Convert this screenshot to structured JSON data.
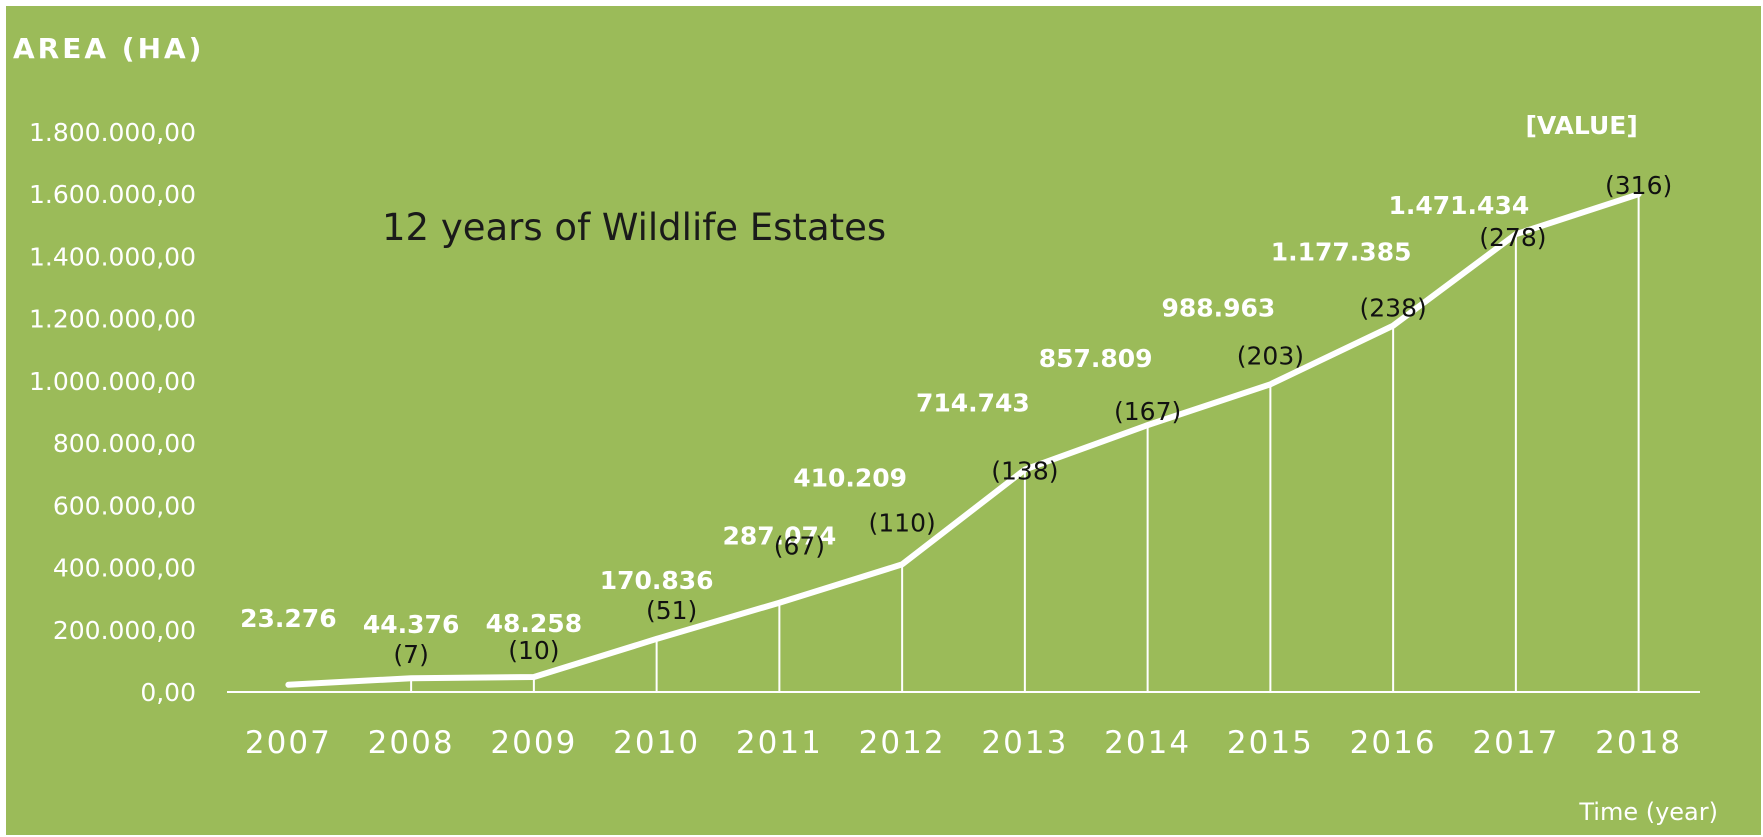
{
  "chart_data": {
    "type": "line",
    "title": "12 years of Wildlife Estates",
    "ylabel": "AREA (HA)",
    "xlabel": "Time (year)",
    "ylim": [
      0,
      1800000
    ],
    "yticks": [
      0,
      200000,
      400000,
      600000,
      800000,
      1000000,
      1200000,
      1400000,
      1600000,
      1800000
    ],
    "ytick_labels": [
      "0,00",
      "200.000,00",
      "400.000,00",
      "600.000,00",
      "800.000,00",
      "1.000.000,00",
      "1.200.000,00",
      "1.400.000,00",
      "1.600.000,00",
      "1.800.000,00"
    ],
    "categories": [
      "2007",
      "2008",
      "2009",
      "2010",
      "2011",
      "2012",
      "2013",
      "2014",
      "2015",
      "2016",
      "2017",
      "2018"
    ],
    "values": [
      23276,
      44376,
      48258,
      170836,
      287074,
      410209,
      714743,
      857809,
      988963,
      1177385,
      1471434,
      1600000
    ],
    "value_labels": [
      "23.276",
      "44.376",
      "48.258",
      "170.836",
      "287.074",
      "410.209",
      "714.743",
      "857.809",
      "988.963",
      "1.177.385",
      "1.471.434",
      "[VALUE]"
    ],
    "count_labels": [
      "",
      "(7)",
      "(10)",
      "(51)",
      "(67)",
      "(110)",
      "(138)",
      "(167)",
      "(203)",
      "(238)",
      "(278)",
      "(316)"
    ],
    "grid": false,
    "legend": "none",
    "colors": {
      "background": "#9BBB59",
      "line": "#ffffff",
      "text_light": "#ffffff",
      "text_dark": "#111111"
    }
  }
}
